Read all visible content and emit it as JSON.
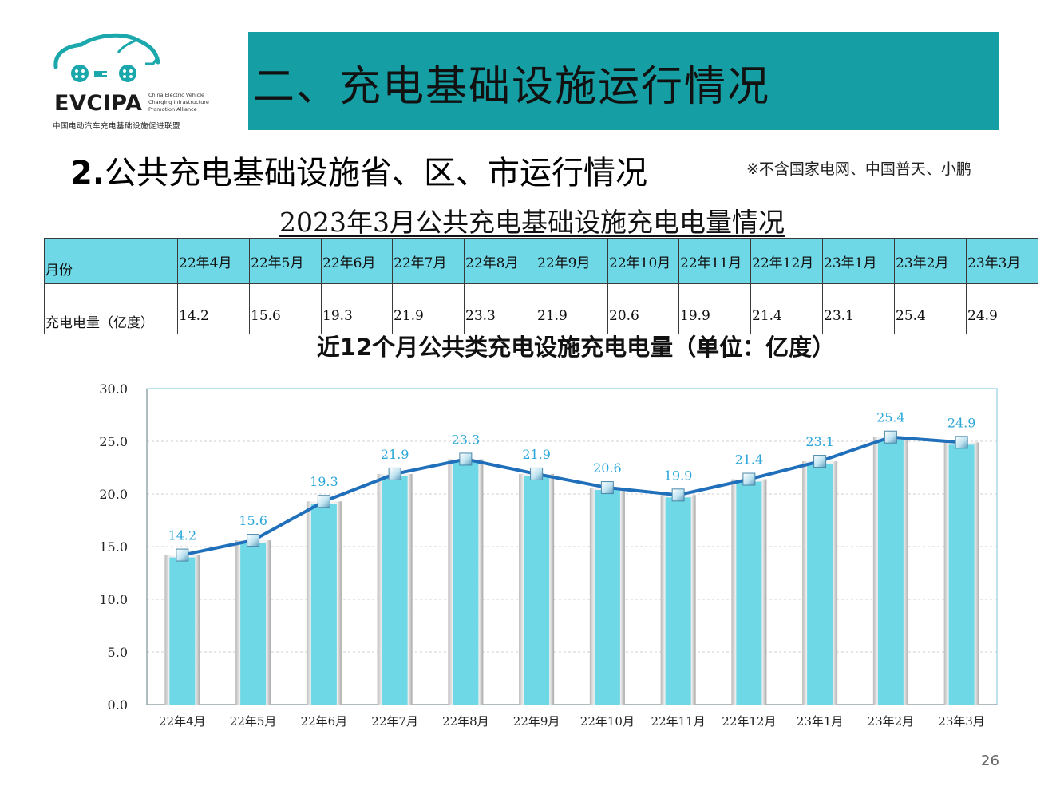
{
  "logo": {
    "wordmark": "EVCIPA",
    "english_lines": [
      "China Electric Vehicle",
      "Charging Infrastructure",
      "Promotion Alliance"
    ],
    "chinese_name": "中国电动汽车充电基础设施促进联盟"
  },
  "banner": {
    "title": "二、充电基础设施运行情况"
  },
  "section": {
    "number": "2.",
    "title": "公共充电基础设施省、区、市运行情况"
  },
  "note": "※不含国家电网、中国普天、小鹏",
  "table": {
    "title": "2023年3月公共充电基础设施充电电量情况",
    "header_label": "月份",
    "value_label": "充电电量（亿度）",
    "months": [
      "22年4月",
      "22年5月",
      "22年6月",
      "22年7月",
      "22年8月",
      "22年9月",
      "22年10月",
      "22年11月",
      "22年12月",
      "23年1月",
      "23年2月",
      "23年3月"
    ],
    "values": [
      "14.2",
      "15.6",
      "19.3",
      "21.9",
      "23.3",
      "21.9",
      "20.6",
      "19.9",
      "21.4",
      "23.1",
      "25.4",
      "24.9"
    ]
  },
  "chart_title": "近12个月公共类充电设施充电电量（单位：亿度）",
  "chart_data": {
    "type": "bar",
    "categories": [
      "22年4月",
      "22年5月",
      "22年6月",
      "22年7月",
      "22年8月",
      "22年9月",
      "22年10月",
      "22年11月",
      "22年12月",
      "23年1月",
      "23年2月",
      "23年3月"
    ],
    "series": [
      {
        "type": "bar",
        "values": [
          14.2,
          15.6,
          19.3,
          21.9,
          23.3,
          21.9,
          20.6,
          19.9,
          21.4,
          23.1,
          25.4,
          24.9
        ],
        "color": "#6fd8e6"
      },
      {
        "type": "line",
        "values": [
          14.2,
          15.6,
          19.3,
          21.9,
          23.3,
          21.9,
          20.6,
          19.9,
          21.4,
          23.1,
          25.4,
          24.9
        ],
        "color": "#1f6fba"
      }
    ],
    "data_labels": [
      "14.2",
      "15.6",
      "19.3",
      "21.9",
      "23.3",
      "21.9",
      "20.6",
      "19.9",
      "21.4",
      "23.1",
      "25.4",
      "24.9"
    ],
    "y_ticks": [
      "0.0",
      "5.0",
      "10.0",
      "15.0",
      "20.0",
      "25.0",
      "30.0"
    ],
    "ylim": [
      0,
      30
    ],
    "grid": true,
    "label_color": "#2aa7d8"
  },
  "page_number": "26"
}
